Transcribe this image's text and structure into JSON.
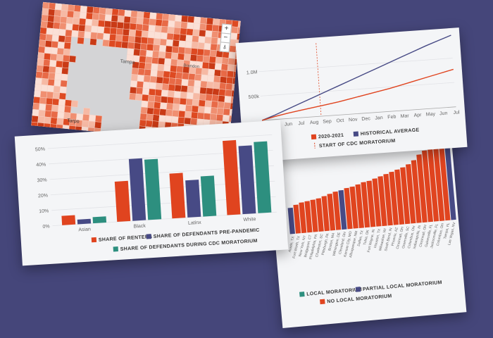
{
  "colors": {
    "background": "#45467a",
    "renters": "#e0441f",
    "pre_pandemic": "#474a85",
    "cdc": "#2d8f7f",
    "no_local": "#e0441f",
    "partial_local": "#474a85",
    "local": "#2d8f7f",
    "map_water": "#d4d4d6"
  },
  "map": {
    "labels": {
      "tampa": "Tampa",
      "brandon": "Brandon",
      "west": "Tarpo"
    },
    "zoom_in": "+",
    "zoom_out": "−",
    "locate": "⍋"
  },
  "line_chart": {
    "months": [
      "Apr",
      "May",
      "Jun",
      "Jul",
      "Aug",
      "Sep",
      "Oct",
      "Nov",
      "Dec",
      "Jan",
      "Feb",
      "Mar",
      "Apr",
      "May",
      "Jun",
      "Jul"
    ],
    "legend": {
      "series_2020": "2020-2021",
      "series_hist": "HISTORICAL AVERAGE",
      "moratorium": "START OF CDC MORATORIUM"
    }
  },
  "chart_data": [
    {
      "type": "bar",
      "categories": [
        "Asian",
        "Black",
        "Latinx",
        "White"
      ],
      "series": [
        {
          "name": "SHARE OF RENTERS",
          "values": [
            6,
            26,
            29,
            48
          ]
        },
        {
          "name": "SHARE OF DEFENDANTS PRE-PANDEMIC",
          "values": [
            3,
            40,
            24,
            44
          ]
        },
        {
          "name": "SHARE OF DEFENDANTS DURING CDC MORATORIUM",
          "values": [
            4,
            39,
            26,
            46
          ]
        }
      ],
      "yticks": [
        "0%",
        "10%",
        "20%",
        "30%",
        "40%",
        "50%"
      ],
      "ylim": [
        0,
        50
      ]
    },
    {
      "type": "line",
      "x": [
        "Apr",
        "May",
        "Jun",
        "Jul",
        "Aug",
        "Sep",
        "Oct",
        "Nov",
        "Dec",
        "Jan",
        "Feb",
        "Mar",
        "Apr",
        "May",
        "Jun",
        "Jul"
      ],
      "series": [
        {
          "name": "HISTORICAL AVERAGE",
          "values": [
            0,
            90000,
            190000,
            290000,
            390000,
            490000,
            590000,
            690000,
            790000,
            890000,
            990000,
            1090000,
            1190000,
            1290000,
            1380000,
            1470000
          ]
        },
        {
          "name": "2020-2021",
          "values": [
            0,
            60000,
            110000,
            150000,
            190000,
            230000,
            270000,
            320000,
            370000,
            420000,
            470000,
            530000,
            590000,
            650000,
            710000,
            770000
          ]
        }
      ],
      "yticks": [
        "500k",
        "1.0M"
      ],
      "ylim": [
        0,
        1500000
      ],
      "moratorium_index": 5
    },
    {
      "type": "bar",
      "categories": [
        "Austin, TX",
        "Fort Worth, TX",
        "New York, NY",
        "Bridgeport, CT",
        "Philadelphia, PA",
        "Charleston, SC",
        "Pittsburgh, PA",
        "Boston, MA",
        "Wilmington, DE",
        "Cleveland, OH",
        "Kansas City, MO",
        "Albuquerque, NM",
        "Dallas, TX",
        "Tulsa, OK",
        "Fort Wayne, IN",
        "Houston, TX",
        "Milwaukee, WI",
        "South Bend, IN",
        "Phoenix, AZ",
        "Cincinnati, OH",
        "Greenville, SC",
        "Columbus, OH",
        "Indianapolis, IN",
        "Cincinnati, OH",
        "Gainesville, FL",
        "Jacksonville, FL",
        "Columbus, OH",
        "Tampa, FL",
        "Las Vegas, NV"
      ],
      "values": [
        30,
        33,
        35,
        36,
        37,
        38,
        40,
        42,
        44,
        45,
        47,
        48,
        50,
        52,
        53,
        55,
        57,
        59,
        61,
        63,
        65,
        68,
        72,
        78,
        82,
        86,
        90,
        94,
        98
      ],
      "colors_by_policy": [
        "partial",
        "no",
        "no",
        "no",
        "no",
        "no",
        "no",
        "no",
        "no",
        "partial",
        "no",
        "no",
        "no",
        "no",
        "no",
        "no",
        "no",
        "no",
        "no",
        "no",
        "no",
        "no",
        "no",
        "no",
        "no",
        "no",
        "no",
        "no",
        "partial"
      ],
      "legend": {
        "local": "LOCAL MORATORIUM",
        "partial": "PARTIAL LOCAL MORATORIUM",
        "none": "NO LOCAL MORATORIUM"
      }
    }
  ]
}
